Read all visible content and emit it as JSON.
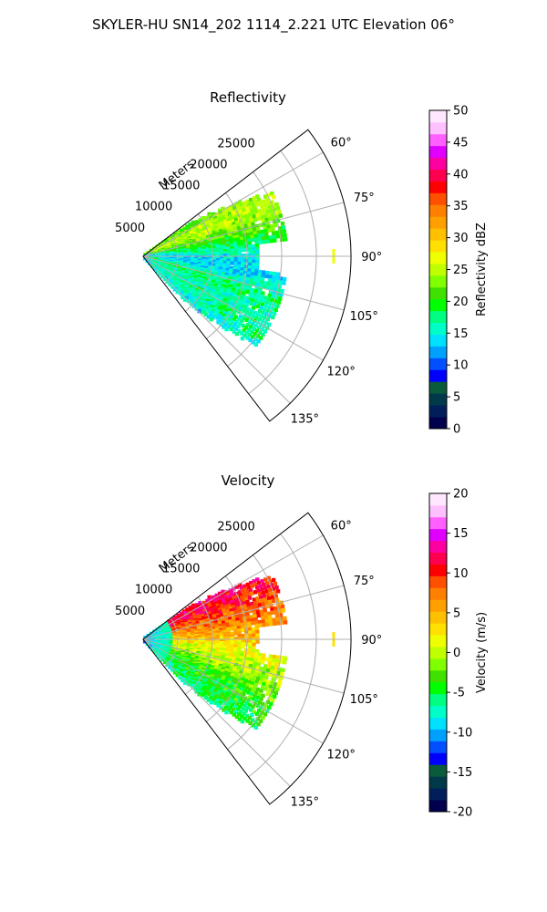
{
  "figure": {
    "title": "SKYLER-HU  SN14_202  1114_2.221 UTC Elevation 06°"
  },
  "chart_data": [
    {
      "type": "heatmap",
      "subtype": "polar-sector (PPI)",
      "title": "Reflectivity",
      "range_label": "Meters",
      "range_ticks": [
        5000,
        10000,
        15000,
        20000,
        25000
      ],
      "range_max": 30000,
      "azimuth_range_deg": [
        52.5,
        142.5
      ],
      "azimuth_ticks": [
        60,
        75,
        90,
        105,
        120,
        135
      ],
      "azimuth_tick_labels": [
        "60°",
        "75°",
        "90°",
        "105°",
        "120°",
        "135°"
      ],
      "grid": true,
      "colorbar": {
        "label": "Reflectivity dBZ",
        "min": 0,
        "max": 50,
        "ticks": [
          0,
          5,
          10,
          15,
          20,
          25,
          30,
          35,
          40,
          45,
          50
        ]
      },
      "echo_extent_m": 21000,
      "azimuth_value_profile": [
        {
          "az": 58,
          "value": 22
        },
        {
          "az": 66,
          "value": 25
        },
        {
          "az": 72,
          "value": 24
        },
        {
          "az": 78,
          "value": 21
        },
        {
          "az": 86,
          "value": 17
        },
        {
          "az": 92,
          "value": 14
        },
        {
          "az": 100,
          "value": 14
        },
        {
          "az": 108,
          "value": 18
        },
        {
          "az": 116,
          "value": 16
        },
        {
          "az": 124,
          "value": 17
        },
        {
          "az": 134,
          "value": 15
        }
      ],
      "notable_point": {
        "az": 90,
        "range_m": 27500,
        "value": 27
      }
    },
    {
      "type": "heatmap",
      "subtype": "polar-sector (PPI)",
      "title": "Velocity",
      "range_label": "Meters",
      "range_ticks": [
        5000,
        10000,
        15000,
        20000,
        25000
      ],
      "range_max": 30000,
      "azimuth_range_deg": [
        52.5,
        142.5
      ],
      "azimuth_ticks": [
        60,
        75,
        90,
        105,
        120,
        135
      ],
      "azimuth_tick_labels": [
        "60°",
        "75°",
        "90°",
        "105°",
        "120°",
        "135°"
      ],
      "grid": true,
      "colorbar": {
        "label": "Velocity (m/s)",
        "min": -20,
        "max": 20,
        "ticks": [
          -20,
          -15,
          -10,
          -5,
          0,
          5,
          10,
          15,
          20
        ]
      },
      "echo_extent_m": 21000,
      "azimuth_value_profile": [
        {
          "az": 58,
          "value": 12
        },
        {
          "az": 66,
          "value": 11
        },
        {
          "az": 72,
          "value": 9
        },
        {
          "az": 80,
          "value": 7
        },
        {
          "az": 88,
          "value": 5
        },
        {
          "az": 96,
          "value": 2
        },
        {
          "az": 104,
          "value": 0
        },
        {
          "az": 112,
          "value": -2
        },
        {
          "az": 120,
          "value": -4
        },
        {
          "az": 128,
          "value": -5
        },
        {
          "az": 134,
          "value": -6
        }
      ],
      "near_range_value": -10,
      "notable_point": {
        "az": 90,
        "range_m": 27500,
        "value": 3
      }
    }
  ],
  "colors": {
    "reflectivity_scale": [
      "#00004c",
      "#001f5a",
      "#003a4a",
      "#0a5a3c",
      "#0000ff",
      "#0050ff",
      "#00a0ff",
      "#00e0ff",
      "#00ffc8",
      "#00ff80",
      "#00ff00",
      "#40e000",
      "#80ff00",
      "#c0ff00",
      "#f0ff00",
      "#ffe000",
      "#ffc000",
      "#ffa000",
      "#ff8000",
      "#ff5000",
      "#ff0000",
      "#ff0050",
      "#ff00a0",
      "#e000ff",
      "#ff60ff",
      "#ffc0ff",
      "#ffe8ff"
    ],
    "velocity_scale": [
      "#00004c",
      "#001f5a",
      "#003a4a",
      "#0a5a3c",
      "#0000ff",
      "#0050ff",
      "#00a0ff",
      "#00e0ff",
      "#00ffc8",
      "#00ff80",
      "#00ff00",
      "#40e000",
      "#80ff00",
      "#c0ff00",
      "#f0ff00",
      "#ffe000",
      "#ffc000",
      "#ffa000",
      "#ff8000",
      "#ff5000",
      "#ff0000",
      "#ff0050",
      "#ff00a0",
      "#e000ff",
      "#ff60ff",
      "#ffc0ff",
      "#ffe8ff"
    ],
    "grid": "#b0b0b0",
    "frame": "#000000"
  }
}
